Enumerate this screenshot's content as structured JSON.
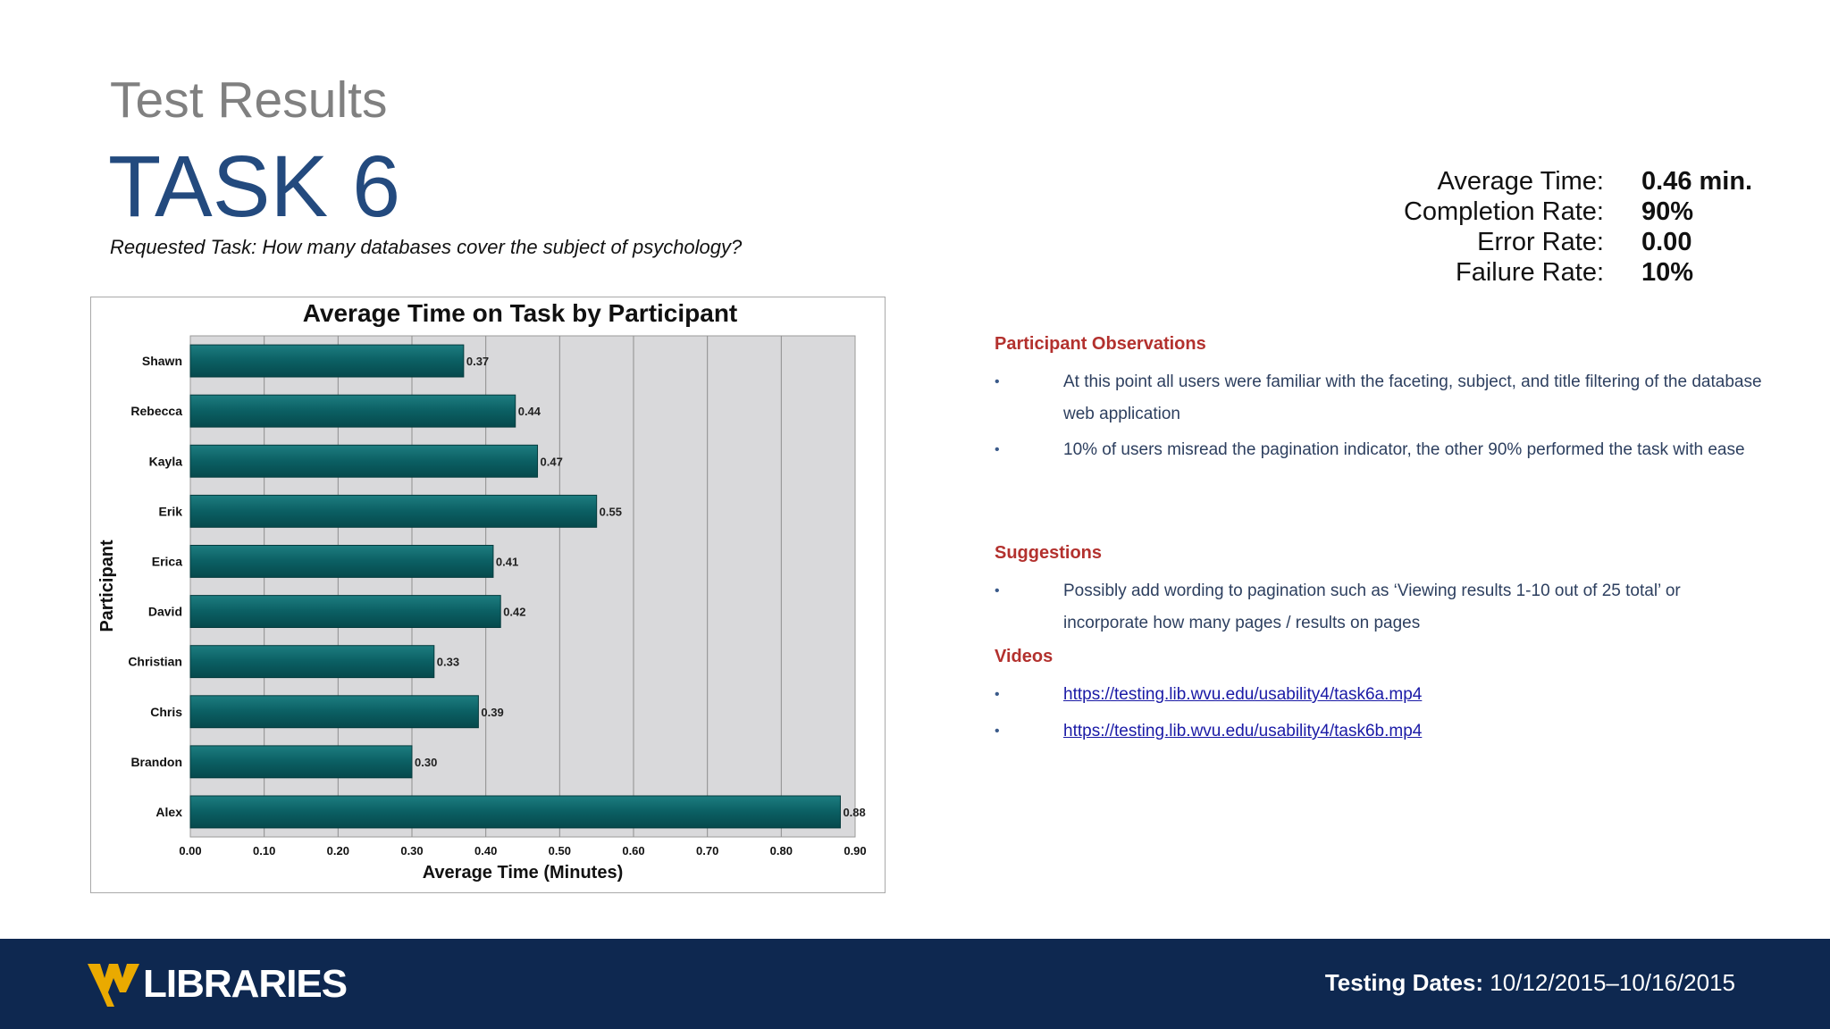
{
  "header": {
    "section_label": "Test Results",
    "task_title": "TASK 6",
    "question": "Requested Task: How many databases cover the subject of psychology?"
  },
  "stats": [
    {
      "label": "Average Time:",
      "value": "0.46 min."
    },
    {
      "label": "Completion Rate:",
      "value": "90%"
    },
    {
      "label": "Error Rate:",
      "value": "0.00"
    },
    {
      "label": "Failure Rate:",
      "value": "10%"
    }
  ],
  "chart_data": {
    "type": "bar",
    "orientation": "horizontal",
    "title": "Average Time on Task by Participant",
    "xlabel": "Average Time (Minutes)",
    "ylabel": "Participant",
    "xlim": [
      0,
      0.9
    ],
    "ticks": [
      "0.00",
      "0.10",
      "0.20",
      "0.30",
      "0.40",
      "0.50",
      "0.60",
      "0.70",
      "0.80",
      "0.90"
    ],
    "categories": [
      "Shawn",
      "Rebecca",
      "Kayla",
      "Erik",
      "Erica",
      "David",
      "Christian",
      "Chris",
      "Brandon",
      "Alex"
    ],
    "values": [
      0.37,
      0.44,
      0.47,
      0.55,
      0.41,
      0.42,
      0.33,
      0.39,
      0.3,
      0.88
    ],
    "value_labels": [
      "0.37",
      "0.44",
      "0.47",
      "0.55",
      "0.41",
      "0.42",
      "0.33",
      "0.39",
      "0.30",
      "0.88"
    ],
    "grid": true,
    "bar_color": "#0b5f63",
    "plot_background": "#d9d9db"
  },
  "observations": {
    "heading": "Participant Observations",
    "items": [
      "At this point all users were familiar with the faceting, subject, and title filtering of the database web application",
      "10% of users misread the pagination indicator, the other 90% performed the task with ease"
    ]
  },
  "suggestions": {
    "heading": "Suggestions",
    "items": [
      "Possibly add wording to pagination such as ‘Viewing results 1-10 out of 25 total’ or incorporate how many pages / results on pages"
    ]
  },
  "videos": {
    "heading": "Videos",
    "links": [
      "https://testing.lib.wvu.edu/usability4/task6a.mp4",
      "https://testing.lib.wvu.edu/usability4/task6b.mp4"
    ]
  },
  "bullet_char": "•",
  "footer": {
    "logo_text": "LIBRARIES",
    "dates_label": "Testing Dates:",
    "dates_value": "10/12/2015–10/16/2015",
    "brand_gold": "#eaaa00",
    "brand_navy": "#0e2850"
  }
}
